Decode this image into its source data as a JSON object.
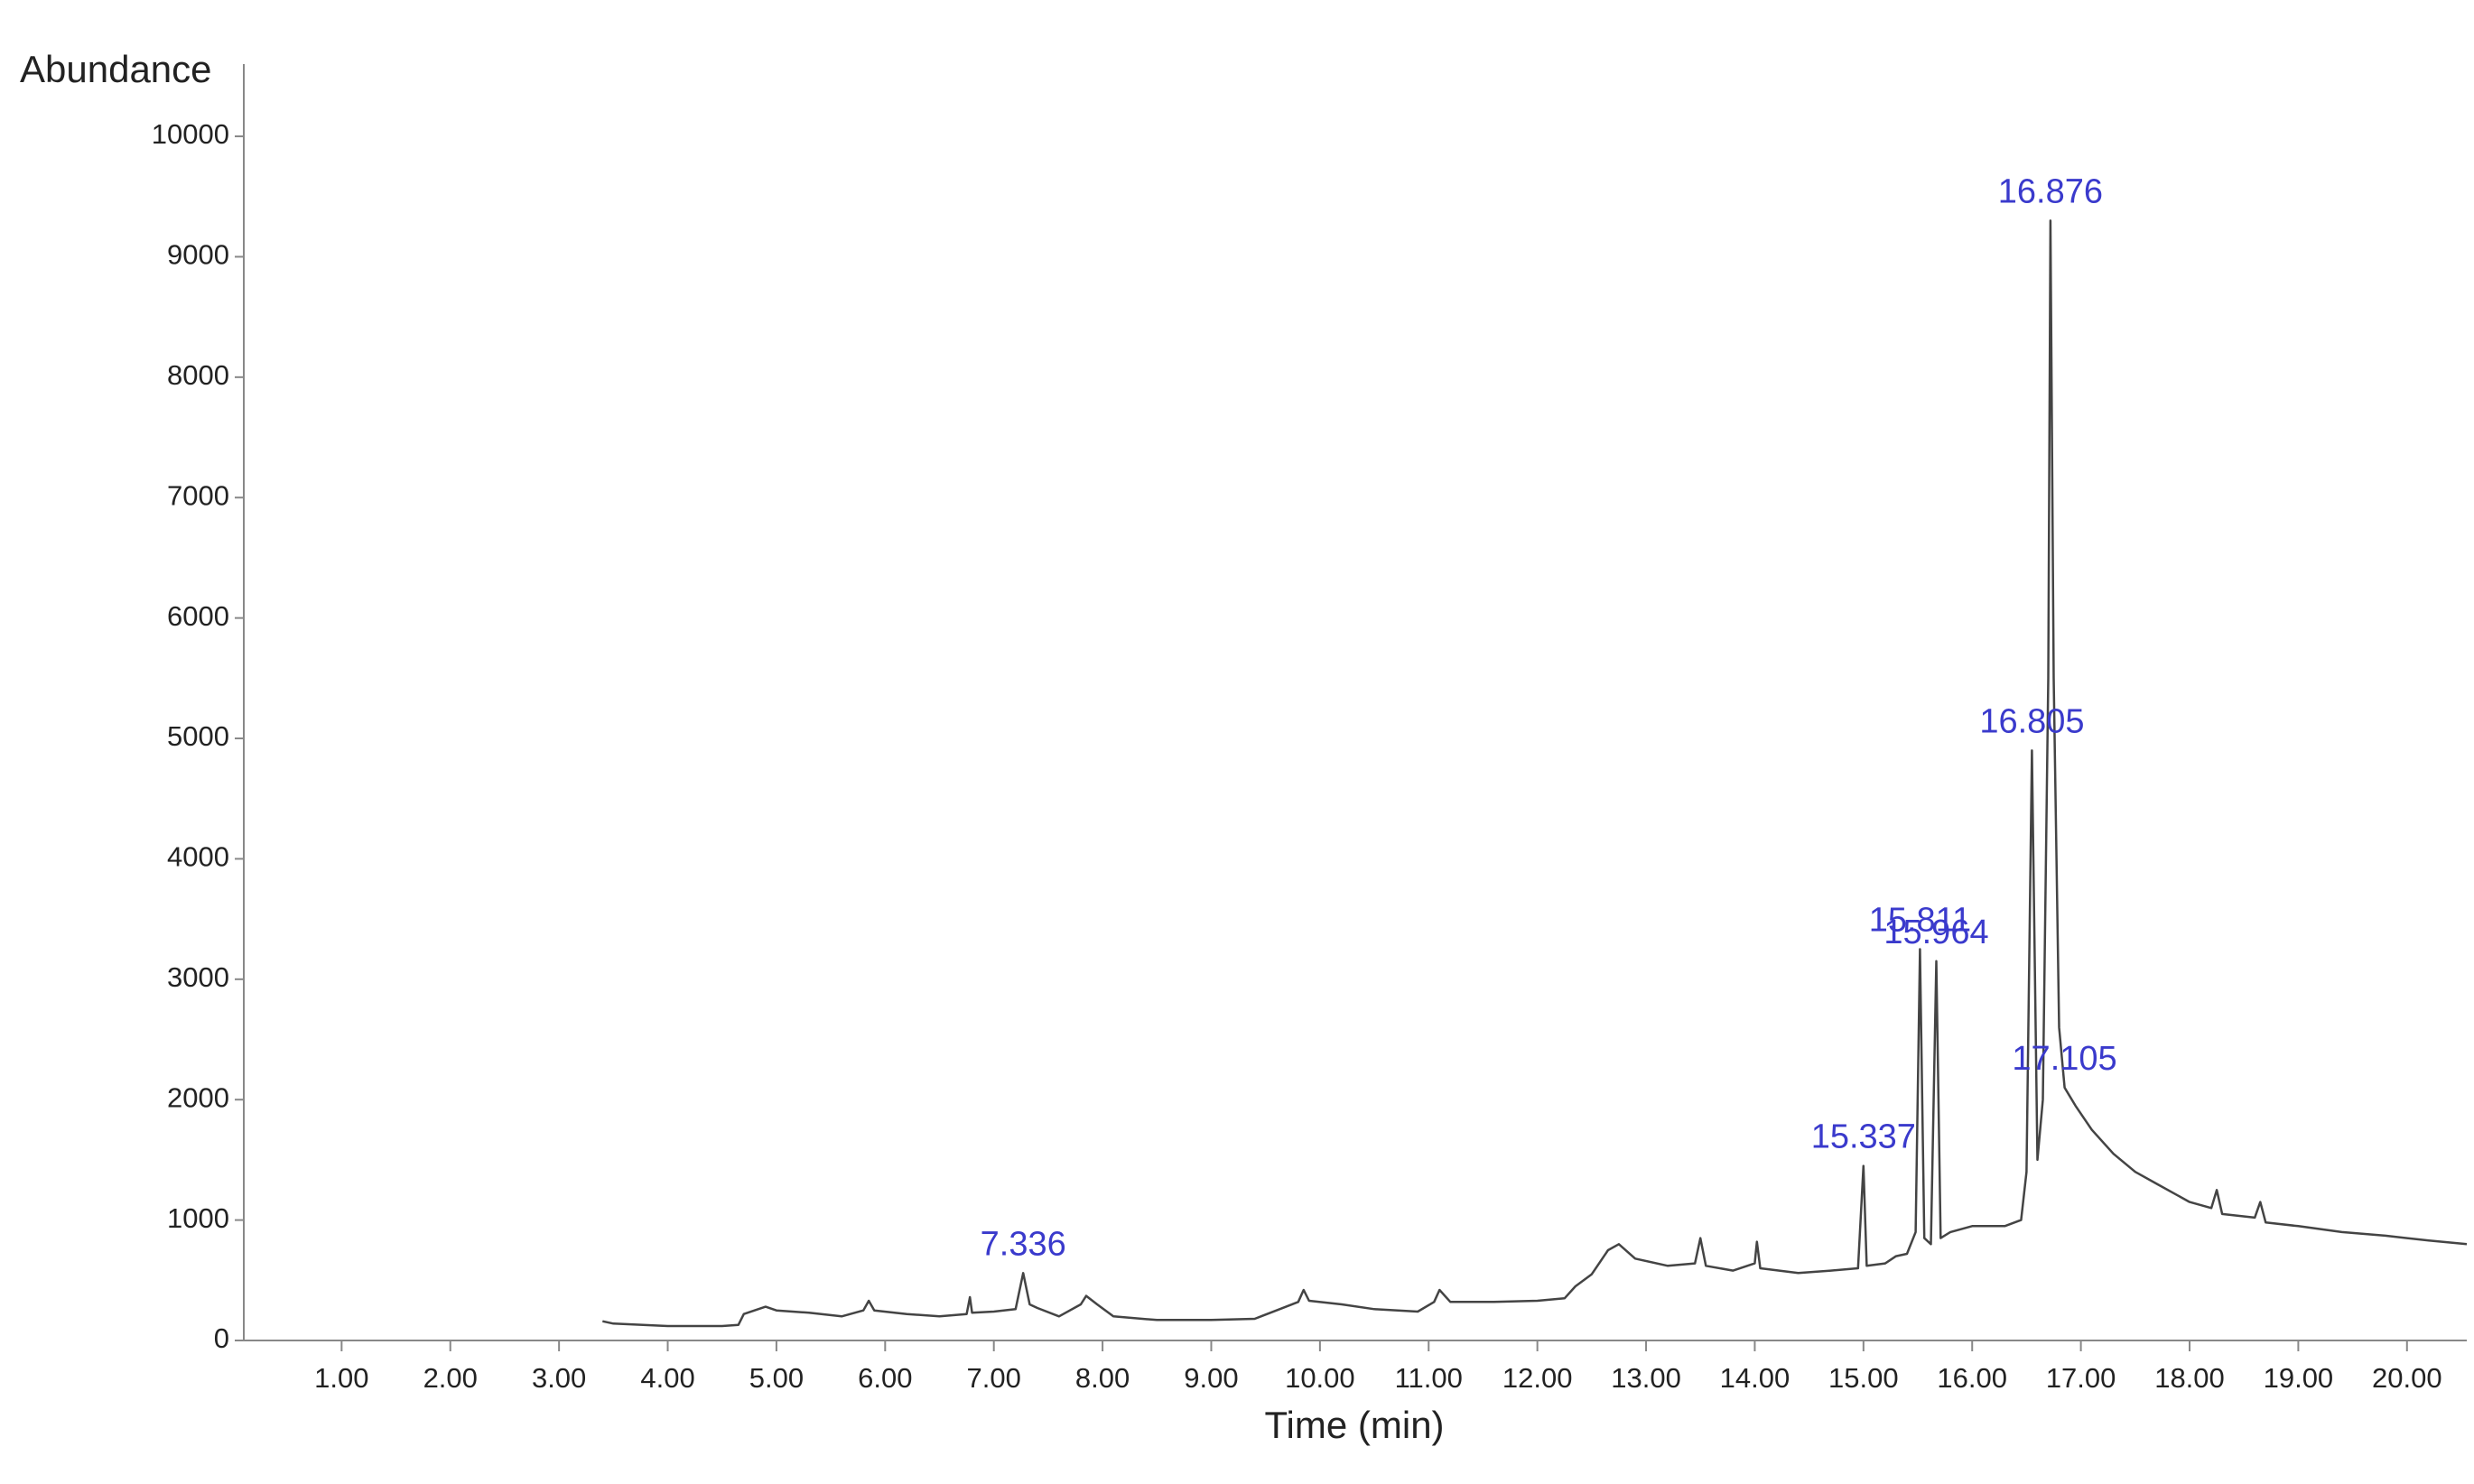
{
  "chart_data": {
    "type": "line",
    "ylabel": "Abundance",
    "xlabel": "Time (min)",
    "color": "#444444",
    "annotation_color": "#3a3acc",
    "x": [
      3.4,
      3.5,
      4.0,
      4.5,
      4.65,
      4.7,
      4.9,
      5.0,
      5.3,
      5.6,
      5.8,
      5.85,
      5.9,
      6.2,
      6.5,
      6.75,
      6.78,
      6.8,
      7.0,
      7.2,
      7.27,
      7.33,
      7.4,
      7.6,
      7.8,
      7.85,
      7.95,
      8.1,
      8.5,
      9.0,
      9.4,
      9.6,
      9.8,
      9.85,
      9.9,
      10.2,
      10.5,
      10.9,
      11.05,
      11.1,
      11.2,
      11.6,
      12.0,
      12.25,
      12.35,
      12.5,
      12.65,
      12.75,
      12.9,
      13.2,
      13.45,
      13.5,
      13.55,
      13.8,
      14.0,
      14.02,
      14.05,
      14.4,
      14.7,
      14.95,
      15.0,
      15.03,
      15.2,
      15.3,
      15.4,
      15.48,
      15.52,
      15.56,
      15.62,
      15.67,
      15.71,
      15.8,
      16.0,
      16.3,
      16.45,
      16.5,
      16.55,
      16.6,
      16.65,
      16.7,
      16.72,
      16.75,
      16.8,
      16.85,
      16.95,
      17.1,
      17.3,
      17.5,
      17.7,
      18.0,
      18.2,
      18.25,
      18.3,
      18.6,
      18.65,
      18.7,
      19.0,
      19.4,
      19.8,
      20.2,
      20.55
    ],
    "values": [
      160,
      140,
      120,
      120,
      130,
      220,
      280,
      250,
      230,
      200,
      250,
      330,
      250,
      220,
      200,
      220,
      360,
      230,
      240,
      260,
      560,
      300,
      270,
      200,
      300,
      370,
      300,
      200,
      170,
      170,
      180,
      250,
      320,
      420,
      330,
      300,
      260,
      240,
      320,
      420,
      320,
      320,
      330,
      350,
      450,
      550,
      750,
      800,
      680,
      620,
      640,
      850,
      620,
      580,
      640,
      820,
      600,
      560,
      580,
      600,
      1450,
      620,
      640,
      700,
      720,
      900,
      3250,
      850,
      800,
      3150,
      850,
      900,
      950,
      950,
      1000,
      1400,
      4900,
      1500,
      2000,
      5500,
      9300,
      5500,
      2600,
      2100,
      1950,
      1750,
      1550,
      1400,
      1300,
      1150,
      1100,
      1250,
      1050,
      1020,
      1150,
      980,
      950,
      900,
      870,
      830,
      800
    ],
    "annotations": [
      {
        "text": "7.336",
        "x": 7.27,
        "y": 560
      },
      {
        "text": "15.337",
        "x": 15.0,
        "y": 1450
      },
      {
        "text": "15.811",
        "x": 15.52,
        "y": 3250
      },
      {
        "text": "15.964",
        "x": 15.67,
        "y": 3150
      },
      {
        "text": "16.805",
        "x": 16.55,
        "y": 4900
      },
      {
        "text": "16.876",
        "x": 16.72,
        "y": 9300
      },
      {
        "text": "17.105",
        "x": 16.85,
        "y": 2100
      }
    ],
    "xlim": [
      0.1,
      20.55
    ],
    "ylim": [
      0,
      10600
    ],
    "xticks": [
      {
        "value": 1,
        "label": "1.00"
      },
      {
        "value": 2,
        "label": "2.00"
      },
      {
        "value": 3,
        "label": "3.00"
      },
      {
        "value": 4,
        "label": "4.00"
      },
      {
        "value": 5,
        "label": "5.00"
      },
      {
        "value": 6,
        "label": "6.00"
      },
      {
        "value": 7,
        "label": "7.00"
      },
      {
        "value": 8,
        "label": "8.00"
      },
      {
        "value": 9,
        "label": "9.00"
      },
      {
        "value": 10,
        "label": "10.00"
      },
      {
        "value": 11,
        "label": "11.00"
      },
      {
        "value": 12,
        "label": "12.00"
      },
      {
        "value": 13,
        "label": "13.00"
      },
      {
        "value": 14,
        "label": "14.00"
      },
      {
        "value": 15,
        "label": "15.00"
      },
      {
        "value": 16,
        "label": "16.00"
      },
      {
        "value": 17,
        "label": "17.00"
      },
      {
        "value": 18,
        "label": "18.00"
      },
      {
        "value": 19,
        "label": "19.00"
      },
      {
        "value": 20,
        "label": "20.00"
      }
    ],
    "yticks": [
      0,
      1000,
      2000,
      3000,
      4000,
      5000,
      6000,
      7000,
      8000,
      9000,
      10000
    ]
  }
}
